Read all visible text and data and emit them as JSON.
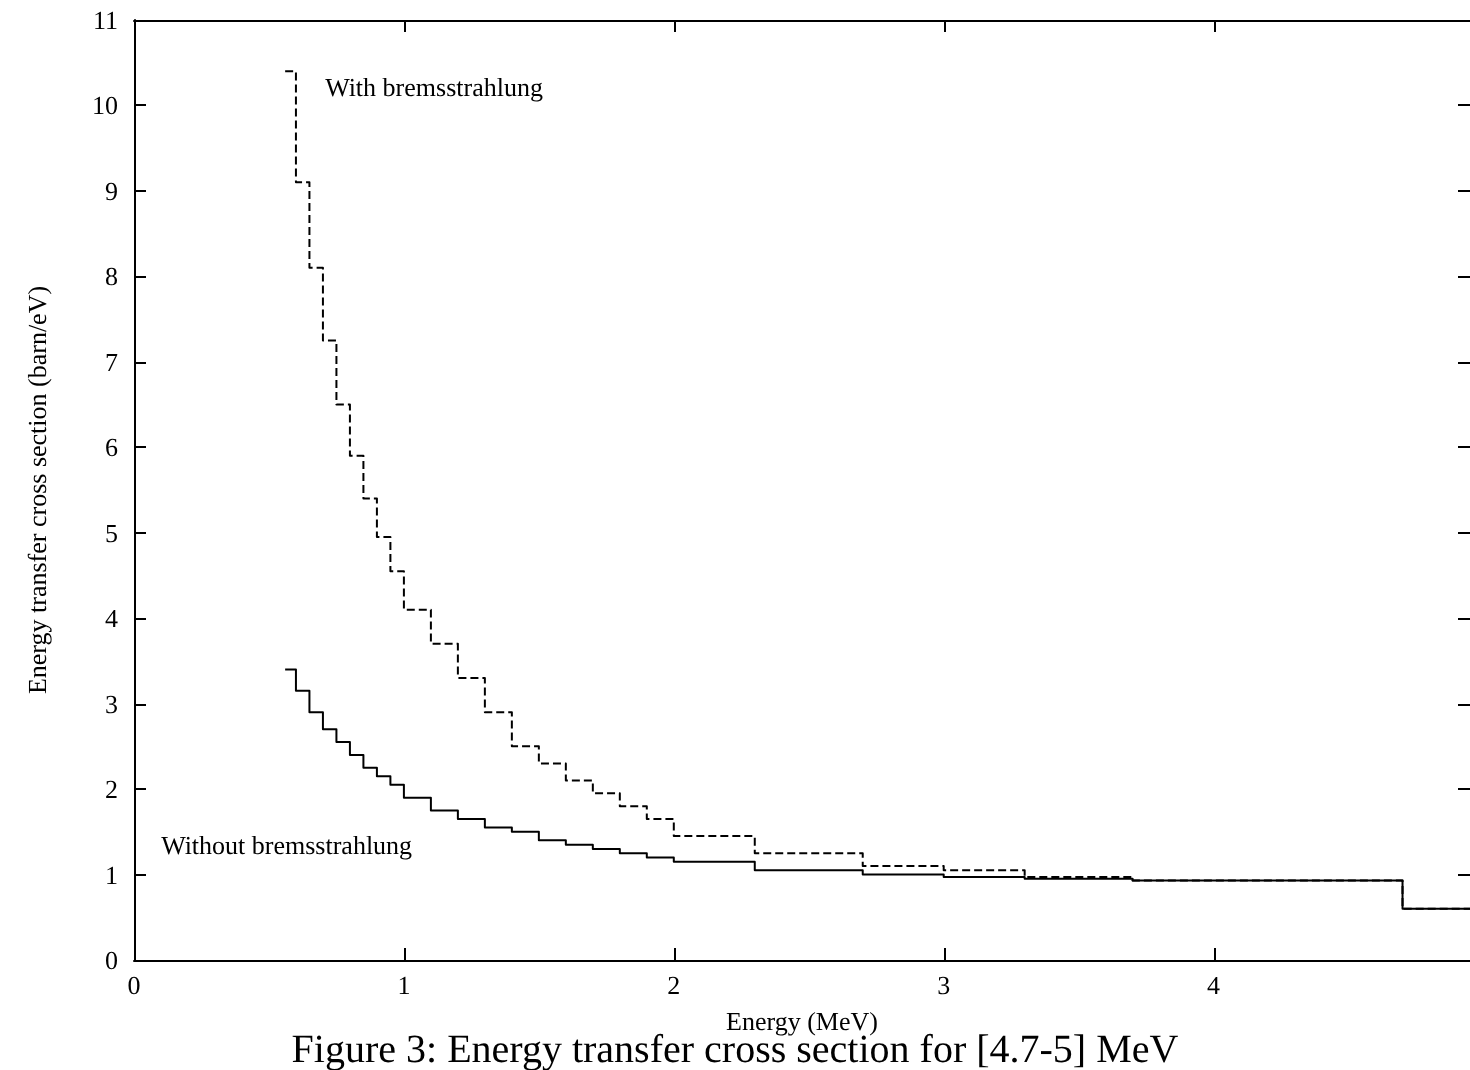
{
  "chart_data": {
    "type": "step",
    "xlabel": "Energy (MeV)",
    "ylabel": "Energy transfer cross section (barn/eV)",
    "x": [
      0.56,
      0.6,
      0.65,
      0.7,
      0.75,
      0.8,
      0.85,
      0.9,
      0.95,
      1.0,
      1.1,
      1.2,
      1.3,
      1.4,
      1.5,
      1.6,
      1.7,
      1.8,
      1.9,
      2.0,
      2.3,
      2.7,
      3.0,
      3.3,
      3.7,
      4.7,
      4.95
    ],
    "series": [
      {
        "name": "With bremsstrahlung",
        "color": "#000000",
        "line_style": "dashed",
        "values": [
          10.4,
          9.1,
          8.1,
          7.25,
          6.5,
          5.9,
          5.4,
          4.95,
          4.55,
          4.1,
          3.7,
          3.3,
          2.9,
          2.5,
          2.3,
          2.1,
          1.95,
          1.8,
          1.65,
          1.45,
          1.25,
          1.1,
          1.05,
          0.97,
          0.93,
          0.6,
          0.6
        ]
      },
      {
        "name": "Without bremsstrahlung",
        "color": "#000000",
        "line_style": "solid",
        "values": [
          3.4,
          3.15,
          2.9,
          2.7,
          2.55,
          2.4,
          2.25,
          2.15,
          2.05,
          1.9,
          1.75,
          1.65,
          1.55,
          1.5,
          1.4,
          1.35,
          1.3,
          1.25,
          1.2,
          1.15,
          1.05,
          1.0,
          0.97,
          0.95,
          0.93,
          0.6,
          0.6
        ]
      }
    ],
    "annotations": [
      "Figure 3: Energy transfer cross section for [4.7-5] MeV"
    ],
    "xlim": [
      0,
      4.95
    ],
    "xticks": [
      0,
      1,
      2,
      3,
      4
    ],
    "ylim": [
      0,
      11
    ],
    "yticks": [
      0,
      1,
      2,
      3,
      4,
      5,
      6,
      7,
      8,
      9,
      10,
      11
    ],
    "grid": false,
    "marker": "none"
  }
}
